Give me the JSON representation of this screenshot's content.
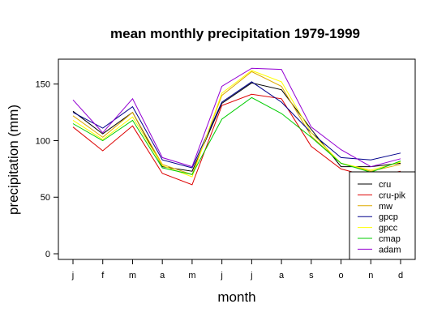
{
  "chart_data": {
    "type": "line",
    "title": "mean monthly precipitation 1979-1999",
    "xlabel": "month",
    "ylabel": "precipitation (mm)",
    "x": [
      "j",
      "f",
      "m",
      "a",
      "m",
      "j",
      "j",
      "a",
      "s",
      "o",
      "n",
      "d"
    ],
    "ylim": [
      -5,
      172
    ],
    "yticks": [
      0,
      50,
      100,
      150
    ],
    "grid": false,
    "legend_position": "bottom-right",
    "series": [
      {
        "name": "cru",
        "color": "#000000",
        "values": [
          126,
          106,
          125,
          77,
          73,
          133,
          151,
          145,
          110,
          77,
          77,
          80
        ]
      },
      {
        "name": "cru-pik",
        "color": "#dd0000",
        "values": [
          112,
          91,
          113,
          71,
          61,
          131,
          141,
          137,
          95,
          75,
          68,
          73
        ]
      },
      {
        "name": "mw",
        "color": "#ddaa00",
        "values": [
          122,
          103,
          125,
          79,
          70,
          140,
          161,
          148,
          104,
          80,
          73,
          79
        ]
      },
      {
        "name": "gpcp",
        "color": "#00008b",
        "values": [
          125,
          111,
          130,
          83,
          76,
          134,
          152,
          134,
          107,
          85,
          83,
          89
        ]
      },
      {
        "name": "gpcc",
        "color": "#ffff00",
        "values": [
          118,
          101,
          121,
          78,
          68,
          142,
          162,
          152,
          107,
          80,
          74,
          81
        ]
      },
      {
        "name": "cmap",
        "color": "#00cc00",
        "values": [
          115,
          100,
          118,
          76,
          70,
          119,
          138,
          124,
          103,
          80,
          72,
          82
        ]
      },
      {
        "name": "adam",
        "color": "#9400d3",
        "values": [
          136,
          107,
          137,
          85,
          77,
          148,
          164,
          163,
          112,
          92,
          77,
          84
        ]
      }
    ]
  }
}
